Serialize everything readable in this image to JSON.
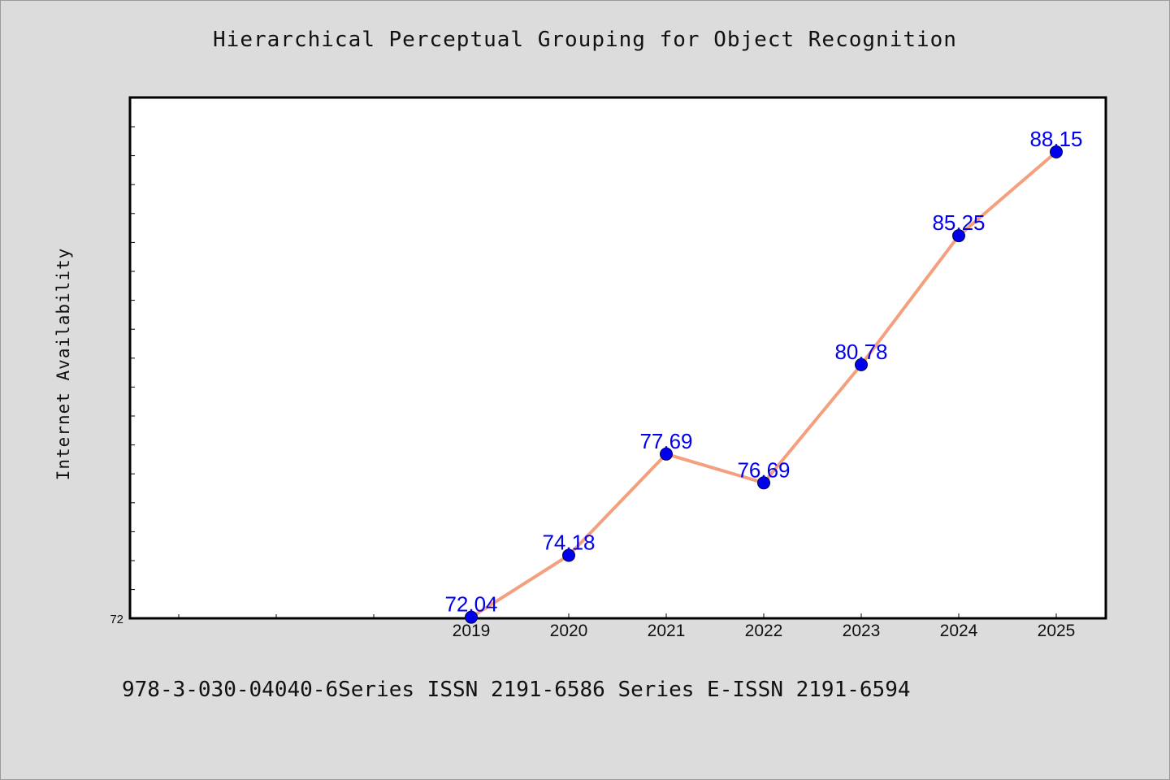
{
  "page": {
    "footer_text": "978-3-030-04040-6Series ISSN 2191-6586 Series E-ISSN 2191-6594"
  },
  "chart_data": {
    "type": "line",
    "title": "Hierarchical Perceptual Grouping for Object Recognition",
    "xlabel": "",
    "ylabel": "Internet Availability",
    "categories": [
      "2019",
      "2020",
      "2021",
      "2022",
      "2023",
      "2024",
      "2025"
    ],
    "values": [
      72.04,
      74.18,
      77.69,
      76.69,
      80.78,
      85.25,
      88.15
    ],
    "data_labels": [
      "72.04",
      "74.18",
      "77.69",
      "76.69",
      "80.78",
      "85.25",
      "88.15"
    ],
    "ylim": [
      72,
      90
    ],
    "yticks_labeled": [
      "72"
    ],
    "grid": false,
    "line_color": "#f4a07f",
    "marker_color": "#0000ee",
    "label_color": "#0000ee",
    "plot_background": "#ffffff",
    "page_background": "#dcdcdc"
  }
}
